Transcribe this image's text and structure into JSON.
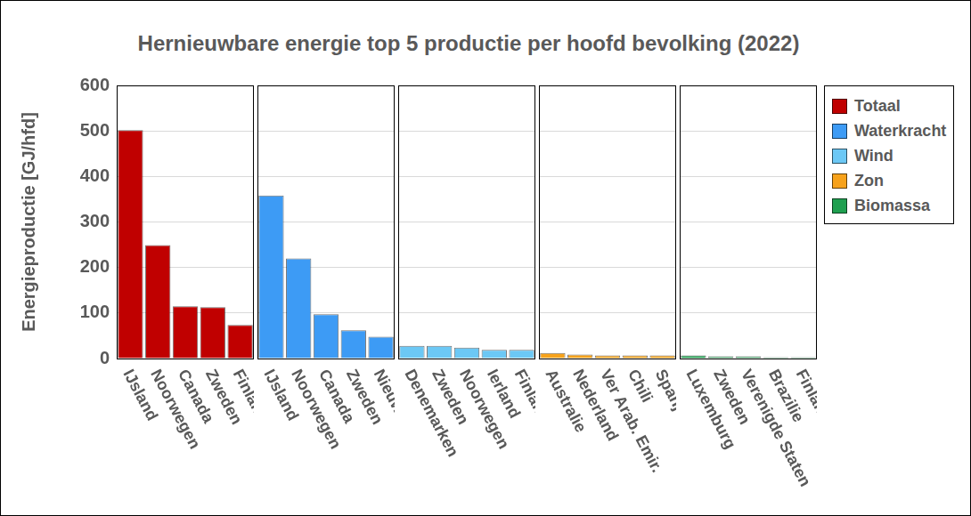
{
  "chart_data": [
    {
      "type": "bar",
      "title": "Hernieuwbare energie top 5 productie per hoofd bevolking (2022)",
      "y_label": "Energieproductie [GJ/hfd]",
      "categories": [
        "IJsland",
        "Noorwegen",
        "Canada",
        "Zweden",
        "Finland"
      ],
      "series": [
        {
          "name": "Totaal",
          "color": "#c00000",
          "values": [
            502,
            249,
            115,
            113,
            74
          ]
        }
      ],
      "ylim": [
        0,
        600
      ],
      "yticks": [
        0,
        100,
        200,
        300,
        400,
        500,
        600
      ],
      "grid": true,
      "legend": "right"
    },
    {
      "type": "bar",
      "categories": [
        "IJsland",
        "Noorwegen",
        "Canada",
        "Zweden",
        "Nieuw Zeeland"
      ],
      "series": [
        {
          "name": "Waterkracht",
          "color": "#3d9bf5",
          "values": [
            358,
            220,
            97,
            62,
            48
          ]
        }
      ],
      "ylim": [
        0,
        600
      ],
      "yticks": [
        0,
        100,
        200,
        300,
        400,
        500,
        600
      ],
      "grid": true,
      "legend": "right",
      "tick_labels": "x"
    },
    {
      "type": "bar",
      "categories": [
        "Denemarken",
        "Zweden",
        "Noorwegen",
        "Ierland",
        "Finland"
      ],
      "series": [
        {
          "name": "Wind",
          "color": "#6cc8f5",
          "values": [
            28,
            28,
            24,
            19,
            19
          ]
        }
      ],
      "ylim": [
        0,
        600
      ],
      "yticks": [
        0,
        100,
        200,
        300,
        400,
        500,
        600
      ],
      "grid": true,
      "legend": "right",
      "tick_labels": "x"
    },
    {
      "type": "bar",
      "categories": [
        "Australie",
        "Nederland",
        "Ver Arab. Emir.",
        "Chili",
        "Spanje"
      ],
      "series": [
        {
          "name": "Zon",
          "color": "#f7a21b",
          "values": [
            12,
            9,
            7,
            7,
            7
          ]
        }
      ],
      "ylim": [
        0,
        600
      ],
      "yticks": [
        0,
        100,
        200,
        300,
        400,
        500,
        600
      ],
      "grid": true,
      "legend": "right",
      "tick_labels": "x"
    },
    {
      "type": "bar",
      "categories": [
        "Luxemburg",
        "Zweden",
        "Verenigde Staten",
        "Brazilie",
        "Finland"
      ],
      "series": [
        {
          "name": "Biomassa",
          "color": "#1fa050",
          "values": [
            7,
            5,
            5,
            3,
            3
          ]
        }
      ],
      "ylim": [
        0,
        600
      ],
      "yticks": [
        0,
        100,
        200,
        300,
        400,
        500,
        600
      ],
      "grid": true,
      "legend": "right",
      "tick_labels": "x"
    }
  ]
}
